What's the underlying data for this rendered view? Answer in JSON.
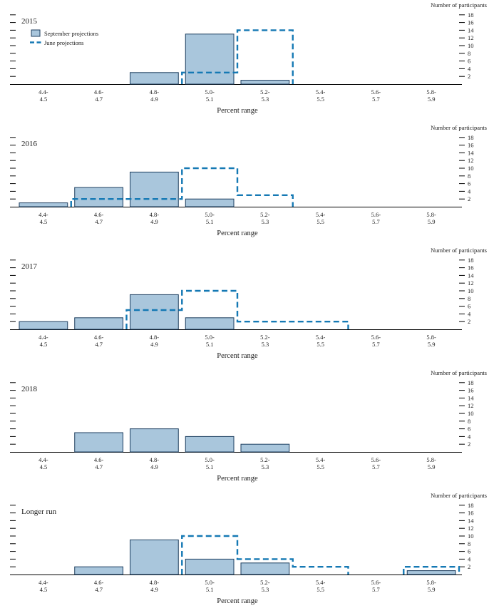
{
  "styles": {
    "bar_fill": "#a9c6dc",
    "bar_stroke": "#1d3e5f",
    "june_color": "#1579b4",
    "text_color": "#1a1a1a",
    "axis_color": "#000000",
    "background": "#ffffff"
  },
  "legend": {
    "september_label": "September projections",
    "june_label": "June projections"
  },
  "axis": {
    "participants_label": "Number of participants",
    "x_label": "Percent range",
    "y_ticks": [
      2,
      4,
      6,
      8,
      10,
      12,
      14,
      16,
      18
    ],
    "y_max": 19,
    "bins": [
      [
        "4.4-",
        "4.5"
      ],
      [
        "4.6-",
        "4.7"
      ],
      [
        "4.8-",
        "4.9"
      ],
      [
        "5.0-",
        "5.1"
      ],
      [
        "5.2-",
        "5.3"
      ],
      [
        "5.4-",
        "5.5"
      ],
      [
        "5.6-",
        "5.7"
      ],
      [
        "5.8-",
        "5.9"
      ]
    ]
  },
  "chart_data": [
    {
      "type": "bar",
      "title": "2015",
      "xlabel": "Percent range",
      "ylabel": "Number of participants",
      "ylim": [
        0,
        19
      ],
      "categories": [
        "4.4-4.5",
        "4.6-4.7",
        "4.8-4.9",
        "5.0-5.1",
        "5.2-5.3",
        "5.4-5.5",
        "5.6-5.7",
        "5.8-5.9"
      ],
      "series": [
        {
          "name": "September projections",
          "style": "filled-bar",
          "values": [
            0,
            0,
            3,
            13,
            1,
            0,
            0,
            0
          ]
        },
        {
          "name": "June projections",
          "style": "dashed-step",
          "values": [
            0,
            0,
            0,
            3,
            14,
            0,
            0,
            0
          ]
        }
      ]
    },
    {
      "type": "bar",
      "title": "2016",
      "xlabel": "Percent range",
      "ylabel": "Number of participants",
      "ylim": [
        0,
        19
      ],
      "categories": [
        "4.4-4.5",
        "4.6-4.7",
        "4.8-4.9",
        "5.0-5.1",
        "5.2-5.3",
        "5.4-5.5",
        "5.6-5.7",
        "5.8-5.9"
      ],
      "series": [
        {
          "name": "September projections",
          "style": "filled-bar",
          "values": [
            1,
            5,
            9,
            2,
            0,
            0,
            0,
            0
          ]
        },
        {
          "name": "June projections",
          "style": "dashed-step",
          "values": [
            0,
            2,
            2,
            10,
            3,
            0,
            0,
            0
          ]
        }
      ]
    },
    {
      "type": "bar",
      "title": "2017",
      "xlabel": "Percent range",
      "ylabel": "Number of participants",
      "ylim": [
        0,
        19
      ],
      "categories": [
        "4.4-4.5",
        "4.6-4.7",
        "4.8-4.9",
        "5.0-5.1",
        "5.2-5.3",
        "5.4-5.5",
        "5.6-5.7",
        "5.8-5.9"
      ],
      "series": [
        {
          "name": "September projections",
          "style": "filled-bar",
          "values": [
            2,
            3,
            9,
            3,
            0,
            0,
            0,
            0
          ]
        },
        {
          "name": "June projections",
          "style": "dashed-step",
          "values": [
            0,
            0,
            5,
            10,
            2,
            2,
            0,
            0
          ]
        }
      ]
    },
    {
      "type": "bar",
      "title": "2018",
      "xlabel": "Percent range",
      "ylabel": "Number of participants",
      "ylim": [
        0,
        19
      ],
      "categories": [
        "4.4-4.5",
        "4.6-4.7",
        "4.8-4.9",
        "5.0-5.1",
        "5.2-5.3",
        "5.4-5.5",
        "5.6-5.7",
        "5.8-5.9"
      ],
      "series": [
        {
          "name": "September projections",
          "style": "filled-bar",
          "values": [
            0,
            5,
            6,
            4,
            2,
            0,
            0,
            0
          ]
        },
        {
          "name": "June projections",
          "style": "dashed-step",
          "values": [
            0,
            0,
            0,
            0,
            0,
            0,
            0,
            0
          ]
        }
      ]
    },
    {
      "type": "bar",
      "title": "Longer run",
      "xlabel": "Percent range",
      "ylabel": "Number of participants",
      "ylim": [
        0,
        19
      ],
      "categories": [
        "4.4-4.5",
        "4.6-4.7",
        "4.8-4.9",
        "5.0-5.1",
        "5.2-5.3",
        "5.4-5.5",
        "5.6-5.7",
        "5.8-5.9"
      ],
      "series": [
        {
          "name": "September projections",
          "style": "filled-bar",
          "values": [
            0,
            2,
            9,
            4,
            3,
            0,
            0,
            1
          ]
        },
        {
          "name": "June projections",
          "style": "dashed-step",
          "values": [
            0,
            0,
            0,
            10,
            4,
            2,
            0,
            2
          ]
        }
      ]
    }
  ]
}
